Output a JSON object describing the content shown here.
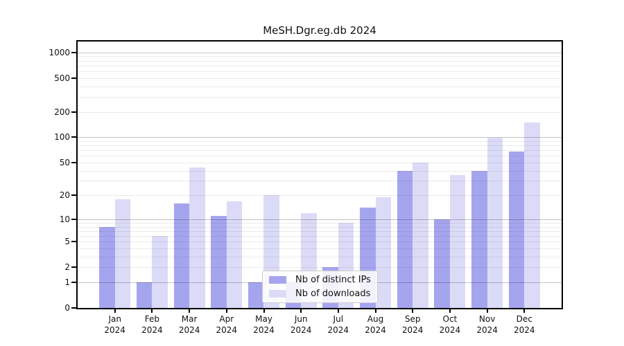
{
  "window": {
    "background": "#ffffff"
  },
  "chart_data": {
    "type": "bar",
    "title": "MeSH.Dgr.eg.db 2024",
    "categories": [
      "Jan",
      "Feb",
      "Mar",
      "Apr",
      "May",
      "Jun",
      "Jul",
      "Aug",
      "Sep",
      "Oct",
      "Nov",
      "Dec"
    ],
    "category_year": "2024",
    "series": [
      {
        "name": "Nb of distinct IPs",
        "color": "#a5a5ef",
        "values": [
          8,
          1,
          16,
          11,
          1,
          1,
          2,
          14,
          40,
          10,
          40,
          68
        ]
      },
      {
        "name": "Nb of downloads",
        "color": "#dbdbf8",
        "values": [
          18,
          6,
          44,
          17,
          20,
          12,
          9,
          19,
          50,
          35,
          98,
          150
        ]
      }
    ],
    "yscale": "log10(1+x)",
    "yticks": [
      0,
      1,
      2,
      5,
      10,
      20,
      50,
      100,
      200,
      500,
      1000
    ],
    "major_grid_values": [
      1,
      10,
      100,
      1000
    ],
    "ylim": [
      0,
      1290
    ],
    "xlabel": "",
    "ylabel": "",
    "grid": "horizontal",
    "legend_position": "inside-bottom-center",
    "colors": {
      "major_grid": "rgba(0,0,0,0.24)",
      "minor_grid": "rgba(0,0,0,0.08)",
      "spine": "#000000",
      "text": "#111111"
    }
  }
}
